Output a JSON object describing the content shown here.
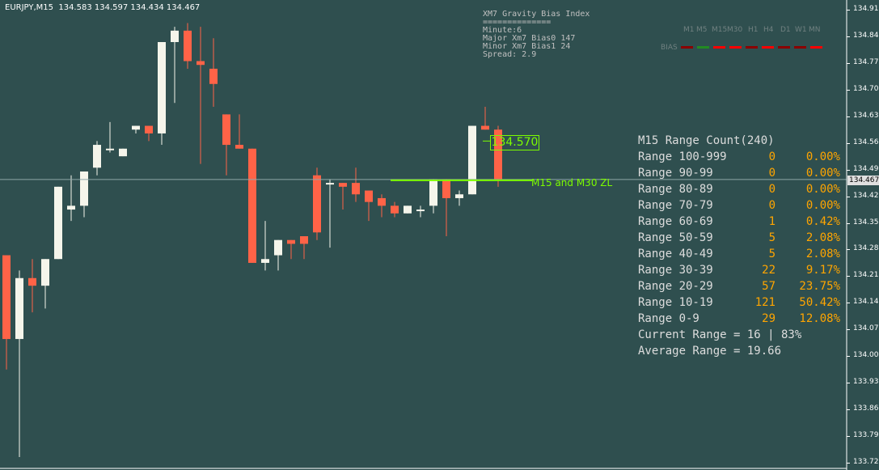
{
  "header": {
    "symbol_info": "EURJPY,M15  134.583 134.597 134.434 134.467"
  },
  "colors": {
    "background": "#2f4f4f",
    "bull": "#f5f5eb",
    "bear": "#ff6347",
    "zone_line": "#7cfc00",
    "grid": "#ffffff",
    "accent": "#ffa500"
  },
  "gravity": {
    "title": "XM7 Gravity Bias Index",
    "separator": "==============",
    "minute": "Minute:6",
    "major": "Major Xm7 Bias0 147",
    "minor": "Minor Xm7 Bias1 24",
    "spread": "Spread: 2.9"
  },
  "bias": {
    "label": "BIAS",
    "timeframes": [
      "M1",
      "M5",
      "M15",
      "M30",
      "H1",
      "H4",
      "D1",
      "W1",
      "MN"
    ],
    "colors": [
      "#8b0000",
      "#228b22",
      "#ff0000",
      "#ff0000",
      "#8b0000",
      "#ff0000",
      "#8b0000",
      "#8b0000",
      "#ff0000"
    ]
  },
  "price_label": "134.570",
  "zone_label": "M15 and M30 ZL",
  "range_panel": {
    "title": "M15 Range Count(240)",
    "rows": [
      {
        "label": "Range 100-999",
        "count": "0",
        "pct": "0.00%"
      },
      {
        "label": "Range 90-99",
        "count": "0",
        "pct": "0.00%"
      },
      {
        "label": "Range 80-89",
        "count": "0",
        "pct": "0.00%"
      },
      {
        "label": "Range 70-79",
        "count": "0",
        "pct": "0.00%"
      },
      {
        "label": "Range 60-69",
        "count": "1",
        "pct": "0.42%"
      },
      {
        "label": "Range 50-59",
        "count": "5",
        "pct": "2.08%"
      },
      {
        "label": "Range 40-49",
        "count": "5",
        "pct": "2.08%"
      },
      {
        "label": "Range 30-39",
        "count": "22",
        "pct": "9.17%"
      },
      {
        "label": "Range 20-29",
        "count": "57",
        "pct": "23.75%"
      },
      {
        "label": "Range 10-19",
        "count": "121",
        "pct": "50.42%"
      },
      {
        "label": "Range 0-9",
        "count": "29",
        "pct": "12.08%"
      }
    ],
    "current": "Current Range = 16 | 83%",
    "average": "Average Range = 19.66"
  },
  "price_axis": {
    "ticks": [
      "134.915",
      "134.845",
      "134.775",
      "134.705",
      "134.635",
      "134.565",
      "134.495",
      "134.425",
      "134.355",
      "134.285",
      "134.215",
      "134.145",
      "134.075",
      "134.005",
      "133.935",
      "133.865",
      "133.795",
      "133.725"
    ],
    "current": "134.467"
  },
  "chart_data": {
    "type": "candlestick",
    "symbol": "EURJPY",
    "timeframe": "M15",
    "candles": [
      {
        "o": 134.27,
        "h": 134.27,
        "l": 133.97,
        "c": 134.05
      },
      {
        "o": 134.05,
        "h": 134.23,
        "l": 133.74,
        "c": 134.21
      },
      {
        "o": 134.21,
        "h": 134.26,
        "l": 134.12,
        "c": 134.19
      },
      {
        "o": 134.19,
        "h": 134.26,
        "l": 134.13,
        "c": 134.26
      },
      {
        "o": 134.26,
        "h": 134.45,
        "l": 134.26,
        "c": 134.45
      },
      {
        "o": 134.39,
        "h": 134.48,
        "l": 134.36,
        "c": 134.4
      },
      {
        "o": 134.4,
        "h": 134.49,
        "l": 134.37,
        "c": 134.49
      },
      {
        "o": 134.5,
        "h": 134.57,
        "l": 134.48,
        "c": 134.56
      },
      {
        "o": 134.55,
        "h": 134.62,
        "l": 134.54,
        "c": 134.55
      },
      {
        "o": 134.53,
        "h": 134.55,
        "l": 134.53,
        "c": 134.55
      },
      {
        "o": 134.6,
        "h": 134.61,
        "l": 134.59,
        "c": 134.61
      },
      {
        "o": 134.61,
        "h": 134.61,
        "l": 134.57,
        "c": 134.59
      },
      {
        "o": 134.59,
        "h": 134.83,
        "l": 134.56,
        "c": 134.83
      },
      {
        "o": 134.83,
        "h": 134.87,
        "l": 134.67,
        "c": 134.86
      },
      {
        "o": 134.86,
        "h": 134.88,
        "l": 134.76,
        "c": 134.78
      },
      {
        "o": 134.78,
        "h": 134.87,
        "l": 134.51,
        "c": 134.77
      },
      {
        "o": 134.76,
        "h": 134.84,
        "l": 134.66,
        "c": 134.72
      },
      {
        "o": 134.64,
        "h": 134.64,
        "l": 134.48,
        "c": 134.56
      },
      {
        "o": 134.56,
        "h": 134.64,
        "l": 134.55,
        "c": 134.55
      },
      {
        "o": 134.55,
        "h": 134.55,
        "l": 134.25,
        "c": 134.25
      },
      {
        "o": 134.25,
        "h": 134.36,
        "l": 134.23,
        "c": 134.26
      },
      {
        "o": 134.27,
        "h": 134.31,
        "l": 134.23,
        "c": 134.31
      },
      {
        "o": 134.31,
        "h": 134.31,
        "l": 134.26,
        "c": 134.3
      },
      {
        "o": 134.32,
        "h": 134.32,
        "l": 134.26,
        "c": 134.3
      },
      {
        "o": 134.48,
        "h": 134.5,
        "l": 134.31,
        "c": 134.33
      },
      {
        "o": 134.46,
        "h": 134.47,
        "l": 134.29,
        "c": 134.46
      },
      {
        "o": 134.46,
        "h": 134.46,
        "l": 134.39,
        "c": 134.45
      },
      {
        "o": 134.46,
        "h": 134.5,
        "l": 134.41,
        "c": 134.43
      },
      {
        "o": 134.44,
        "h": 134.44,
        "l": 134.36,
        "c": 134.41
      },
      {
        "o": 134.42,
        "h": 134.43,
        "l": 134.37,
        "c": 134.4
      },
      {
        "o": 134.4,
        "h": 134.41,
        "l": 134.37,
        "c": 134.38
      },
      {
        "o": 134.38,
        "h": 134.4,
        "l": 134.38,
        "c": 134.4
      },
      {
        "o": 134.39,
        "h": 134.4,
        "l": 134.37,
        "c": 134.39
      },
      {
        "o": 134.4,
        "h": 134.47,
        "l": 134.38,
        "c": 134.47
      },
      {
        "o": 134.47,
        "h": 134.47,
        "l": 134.32,
        "c": 134.42
      },
      {
        "o": 134.42,
        "h": 134.44,
        "l": 134.4,
        "c": 134.43
      },
      {
        "o": 134.43,
        "h": 134.61,
        "l": 134.43,
        "c": 134.61
      },
      {
        "o": 134.61,
        "h": 134.66,
        "l": 134.6,
        "c": 134.6
      },
      {
        "o": 134.6,
        "h": 134.61,
        "l": 134.45,
        "c": 134.47
      }
    ],
    "zone_level": 134.467,
    "price_tag": 134.57,
    "ylim": [
      133.72,
      134.93
    ]
  }
}
